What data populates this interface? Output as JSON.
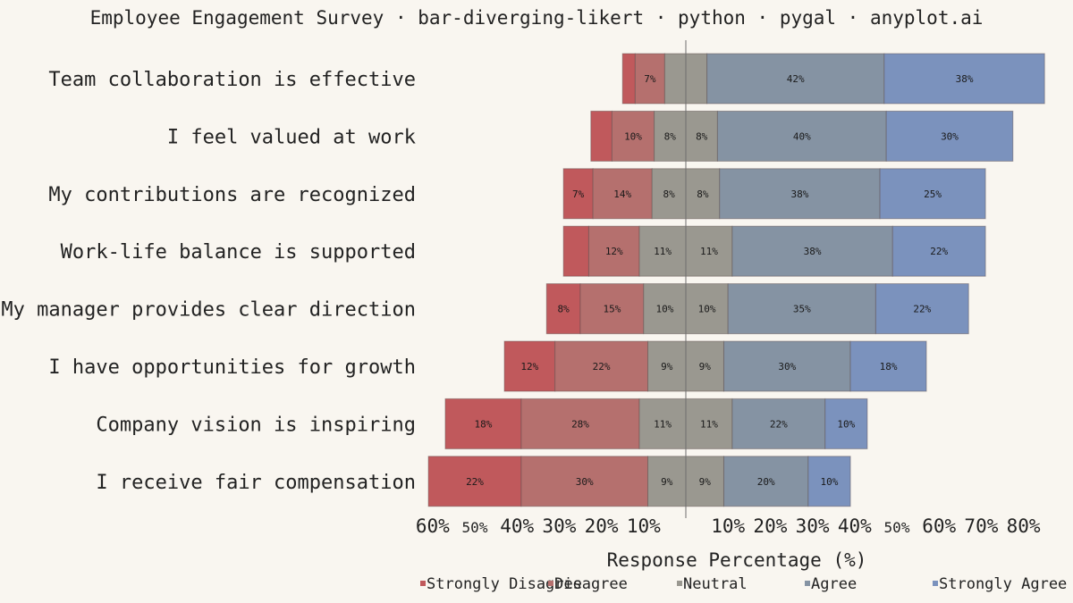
{
  "chart_data": {
    "type": "bar",
    "subtype": "diverging-stacked",
    "title": "Employee Engagement Survey · bar-diverging-likert · python · pygal · anyplot.ai",
    "xlabel": "Response Percentage (%)",
    "ylabel": "",
    "xlim": [
      -60,
      85
    ],
    "x_ticks": [
      {
        "value": -60,
        "label": "60%"
      },
      {
        "value": -50,
        "label": "50%"
      },
      {
        "value": -40,
        "label": "40%"
      },
      {
        "value": -30,
        "label": "30%"
      },
      {
        "value": -20,
        "label": "20%"
      },
      {
        "value": -10,
        "label": "10%"
      },
      {
        "value": 10,
        "label": "10%"
      },
      {
        "value": 20,
        "label": "20%"
      },
      {
        "value": 30,
        "label": "30%"
      },
      {
        "value": 40,
        "label": "40%"
      },
      {
        "value": 50,
        "label": "50%"
      },
      {
        "value": 60,
        "label": "60%"
      },
      {
        "value": 70,
        "label": "70%"
      },
      {
        "value": 80,
        "label": "80%"
      }
    ],
    "legend_position": "bottom",
    "categories": [
      "Team collaboration is effective",
      "I feel valued at work",
      "My contributions are recognized",
      "Work-life balance is supported",
      "My manager provides clear direction",
      "I have opportunities for growth",
      "Company vision is inspiring",
      "I receive fair compensation"
    ],
    "series": [
      {
        "name": "Strongly Disagree",
        "color": "#c0595c",
        "values": [
          3,
          5,
          7,
          6,
          8,
          12,
          18,
          22
        ]
      },
      {
        "name": "Disagree",
        "color": "#b5706e",
        "values": [
          7,
          10,
          14,
          12,
          15,
          22,
          28,
          30
        ]
      },
      {
        "name": "Neutral",
        "color": "#9a9890",
        "values": [
          10,
          15,
          16,
          22,
          20,
          18,
          22,
          18
        ]
      },
      {
        "name": "Agree",
        "color": "#8593a3",
        "values": [
          42,
          40,
          38,
          38,
          35,
          30,
          22,
          20
        ]
      },
      {
        "name": "Strongly Agree",
        "color": "#7b92bd",
        "values": [
          38,
          30,
          25,
          22,
          22,
          18,
          10,
          10
        ]
      }
    ]
  }
}
